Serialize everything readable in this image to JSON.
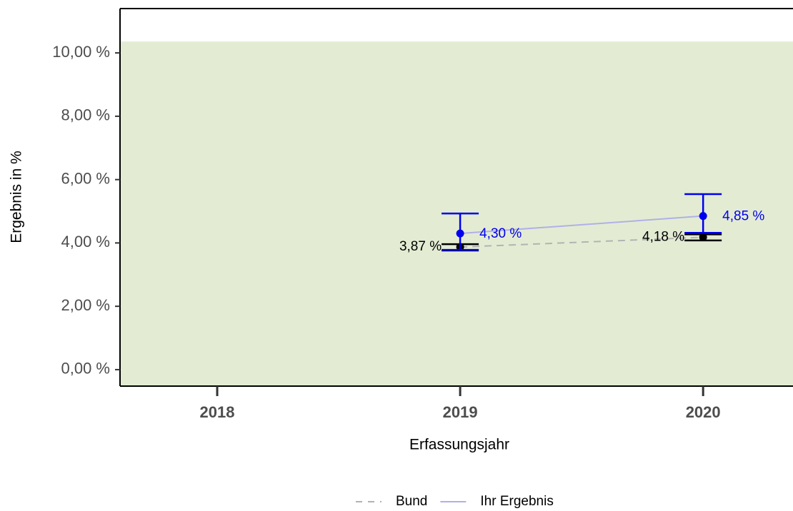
{
  "chart_data": {
    "type": "line",
    "x_label": "Erfassungsjahr",
    "y_label": "Ergebnis in %",
    "x": [
      2018,
      2019,
      2020
    ],
    "xlim": [
      2017.6,
      2020.37
    ],
    "xticks": [
      2018,
      2019,
      2020
    ],
    "ylim": [
      -0.52,
      11.4
    ],
    "yticks": [
      {
        "value": 0,
        "label": "0,00 %"
      },
      {
        "value": 2,
        "label": "2,00 %"
      },
      {
        "value": 4,
        "label": "4,00 %"
      },
      {
        "value": 6,
        "label": "6,00 %"
      },
      {
        "value": 8,
        "label": "8,00 %"
      },
      {
        "value": 10,
        "label": "10,00 %"
      }
    ],
    "reference_band_top": 10.36,
    "reference_band_color": "#e3ecd3",
    "series": [
      {
        "name": "Bund",
        "color": "#000000",
        "line_color": "#b3b3b3",
        "dashed": true,
        "values": [
          null,
          3.87,
          4.18
        ],
        "lower": [
          null,
          3.76,
          4.08
        ],
        "upper": [
          null,
          3.96,
          4.27
        ],
        "value_labels": [
          null,
          "3,87 %",
          "4,18 %"
        ],
        "label_side": "left"
      },
      {
        "name": "Ihr Ergebnis",
        "color": "#0000ee",
        "line_color": "#b0b0e8",
        "dashed": false,
        "values": [
          null,
          4.3,
          4.85
        ],
        "lower": [
          null,
          3.78,
          4.32
        ],
        "upper": [
          null,
          4.93,
          5.54
        ],
        "value_labels": [
          null,
          "4,30 %",
          "4,85 %"
        ],
        "label_side": "right"
      }
    ]
  }
}
